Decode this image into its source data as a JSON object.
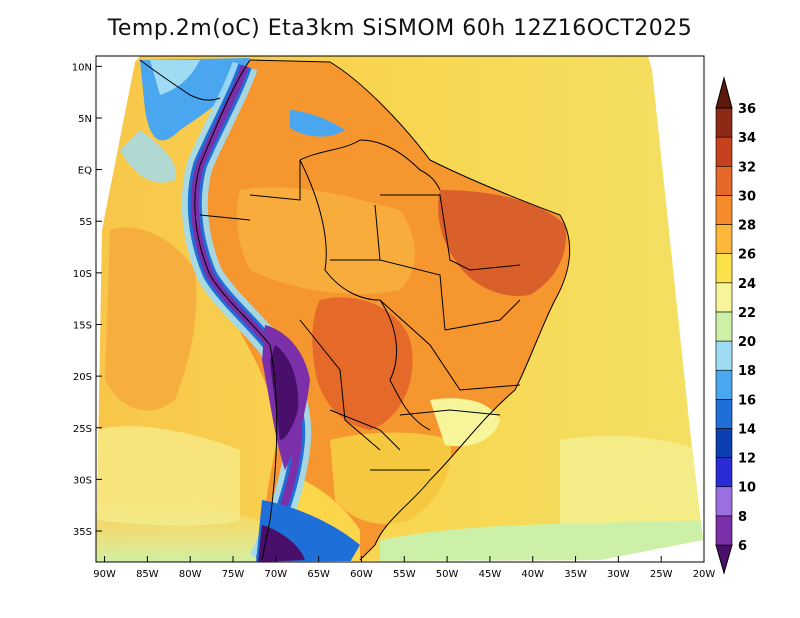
{
  "title": "Temp.2m(oC) Eta3km SiSMOM 60h 12Z16OCT2025",
  "map": {
    "lon_range": [
      -91,
      -20
    ],
    "lat_range": [
      -38,
      11
    ],
    "lon_ticks": [
      {
        "value": -90,
        "label": "90W"
      },
      {
        "value": -85,
        "label": "85W"
      },
      {
        "value": -80,
        "label": "80W"
      },
      {
        "value": -75,
        "label": "75W"
      },
      {
        "value": -70,
        "label": "70W"
      },
      {
        "value": -65,
        "label": "65W"
      },
      {
        "value": -60,
        "label": "60W"
      },
      {
        "value": -55,
        "label": "55W"
      },
      {
        "value": -50,
        "label": "50W"
      },
      {
        "value": -45,
        "label": "45W"
      },
      {
        "value": -40,
        "label": "40W"
      },
      {
        "value": -35,
        "label": "35W"
      },
      {
        "value": -30,
        "label": "30W"
      },
      {
        "value": -25,
        "label": "25W"
      },
      {
        "value": -20,
        "label": "20W"
      }
    ],
    "lat_ticks": [
      {
        "value": 10,
        "label": "10N"
      },
      {
        "value": 5,
        "label": "5N"
      },
      {
        "value": 0,
        "label": "EQ"
      },
      {
        "value": -5,
        "label": "5S"
      },
      {
        "value": -10,
        "label": "10S"
      },
      {
        "value": -15,
        "label": "15S"
      },
      {
        "value": -20,
        "label": "20S"
      },
      {
        "value": -25,
        "label": "25S"
      },
      {
        "value": -30,
        "label": "30S"
      },
      {
        "value": -35,
        "label": "35S"
      }
    ]
  },
  "colorbar": {
    "levels": [
      6,
      8,
      10,
      12,
      14,
      16,
      18,
      20,
      22,
      24,
      26,
      28,
      30,
      32,
      34,
      36
    ],
    "labels": [
      "6",
      "8",
      "10",
      "12",
      "14",
      "16",
      "18",
      "20",
      "22",
      "24",
      "26",
      "28",
      "30",
      "32",
      "34",
      "36"
    ],
    "colors": [
      "#4a0e6b",
      "#7b2fa8",
      "#9b6fe0",
      "#2b2bd6",
      "#0b3fb0",
      "#1e6fd8",
      "#4aa6ee",
      "#9fdcf4",
      "#cdf0a8",
      "#f7f59a",
      "#fbe24a",
      "#fbb83a",
      "#f68b2c",
      "#e5672a",
      "#c6421e",
      "#8d2a16",
      "#5c1a0b"
    ]
  }
}
